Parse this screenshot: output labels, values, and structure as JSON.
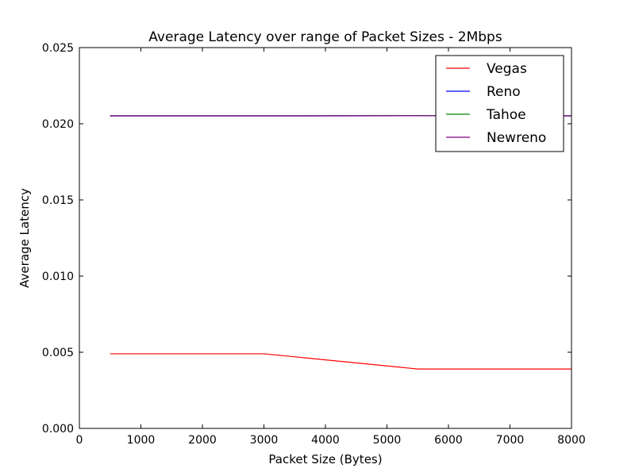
{
  "chart_data": {
    "type": "line",
    "title": "Average Latency over range of Packet Sizes - 2Mbps",
    "xlabel": "Packet Size (Bytes)",
    "ylabel": "Average Latency",
    "xlim": [
      0,
      8000
    ],
    "ylim": [
      0,
      0.025
    ],
    "xticks": [
      0,
      1000,
      2000,
      3000,
      4000,
      5000,
      6000,
      7000,
      8000
    ],
    "xtick_labels": [
      "0",
      "1000",
      "2000",
      "3000",
      "4000",
      "5000",
      "6000",
      "7000",
      "8000"
    ],
    "yticks": [
      0,
      0.005,
      0.01,
      0.015,
      0.02,
      0.025
    ],
    "ytick_labels": [
      "0.000",
      "0.005",
      "0.010",
      "0.015",
      "0.020",
      "0.025"
    ],
    "grid": false,
    "legend": "top-right",
    "x": [
      500,
      3000,
      5500,
      8000
    ],
    "series": [
      {
        "name": "Vegas",
        "color": "#ff0000",
        "values": [
          0.0049,
          0.0049,
          0.0039,
          0.0039
        ]
      },
      {
        "name": "Reno",
        "color": "#0000ff",
        "values": [
          0.02052,
          0.02052,
          0.02053,
          0.02052
        ]
      },
      {
        "name": "Tahoe",
        "color": "#008000",
        "values": [
          0.02052,
          0.02052,
          0.02053,
          0.02052
        ]
      },
      {
        "name": "Newreno",
        "color": "#800080",
        "values": [
          0.02052,
          0.02052,
          0.02053,
          0.02052
        ]
      }
    ]
  }
}
